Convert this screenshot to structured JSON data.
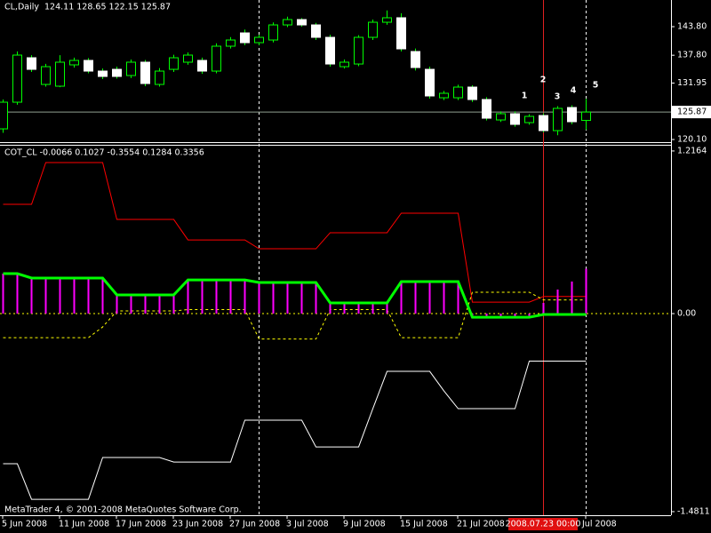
{
  "chart_data": [
    {
      "type": "candlestick",
      "title": "CL,Daily",
      "ohlc_label": "124.11 128.65 122.15 125.87",
      "open": [
        122.34,
        127.94,
        137.27,
        131.67,
        131.3,
        135.78,
        136.71,
        134.47,
        134.84,
        133.54,
        136.34,
        131.67,
        134.84,
        136.34,
        136.71,
        134.47,
        139.7,
        142.49,
        140.44,
        141.0,
        144.17,
        145.29,
        144.17,
        141.56,
        135.4,
        135.96,
        141.56,
        144.73,
        145.67,
        138.58,
        134.84,
        128.87,
        128.87,
        131.11,
        128.5,
        124.21,
        125.52,
        123.65,
        125.14,
        121.97,
        126.82,
        124.11
      ],
      "high": [
        128.5,
        138.6,
        137.8,
        136.0,
        137.8,
        137.3,
        137.2,
        135.0,
        135.4,
        136.9,
        136.8,
        135.1,
        137.9,
        138.4,
        137.3,
        140.3,
        141.6,
        143.2,
        142.1,
        144.7,
        145.9,
        145.6,
        144.6,
        142.1,
        136.9,
        142.0,
        145.3,
        147.2,
        146.6,
        139.2,
        135.4,
        130.3,
        131.6,
        131.5,
        129.0,
        126.0,
        126.0,
        125.4,
        125.6,
        127.1,
        127.3,
        128.65
      ],
      "low": [
        121.5,
        127.4,
        134.3,
        131.2,
        131.1,
        135.2,
        134.0,
        132.8,
        132.9,
        133.0,
        131.3,
        131.2,
        134.3,
        135.8,
        133.9,
        134.0,
        139.2,
        139.9,
        139.9,
        140.5,
        143.7,
        143.8,
        141.0,
        135.4,
        135.0,
        135.5,
        141.0,
        144.2,
        138.6,
        134.6,
        128.7,
        128.4,
        128.4,
        128.0,
        124.1,
        123.8,
        122.8,
        123.2,
        121.6,
        121.0,
        123.3,
        122.15
      ],
      "close": [
        127.94,
        137.83,
        134.84,
        135.4,
        136.34,
        136.71,
        134.47,
        133.35,
        133.35,
        136.34,
        131.86,
        134.47,
        137.27,
        137.83,
        134.47,
        139.7,
        141.0,
        140.44,
        141.56,
        144.17,
        145.29,
        144.17,
        141.56,
        135.96,
        136.34,
        141.56,
        144.73,
        145.67,
        139.14,
        135.22,
        129.25,
        129.81,
        131.11,
        128.5,
        124.58,
        125.52,
        123.28,
        124.96,
        121.97,
        126.64,
        123.84,
        125.87
      ],
      "bull_color": "#000000",
      "bear_color": "#ffffff",
      "wick_color": "#00ff00",
      "ylim": [
        119.55,
        149.4
      ],
      "yticks": [
        {
          "value": 143.8,
          "label": "143.80"
        },
        {
          "value": 137.8,
          "label": "137.80"
        },
        {
          "value": 131.95,
          "label": "131.95"
        },
        {
          "value": 120.1,
          "label": "120.10"
        }
      ],
      "annotations": [
        "1",
        "2",
        "3",
        "4",
        "5"
      ]
    },
    {
      "type": "line",
      "title": "COT_CL -0.0066 0.1027 -0.3554 0.1284 0.3356",
      "categories": [
        "5 Jun 2008",
        null,
        null,
        null,
        "11 Jun 2008",
        null,
        null,
        null,
        "17 Jun 2008",
        null,
        null,
        null,
        "23 Jun 2008",
        null,
        null,
        null,
        "27 Jun 2008",
        null,
        null,
        null,
        "3 Jul 2008",
        null,
        null,
        null,
        "9 Jul 2008",
        null,
        null,
        null,
        "15 Jul 2008",
        null,
        null,
        null,
        "21 Jul 2008",
        null,
        null,
        null,
        null,
        null,
        null,
        null,
        null,
        "Jul 2008"
      ],
      "crosshair_label": "2008.07.23 00:00",
      "footer": "MetaTrader 4, © 2001-2008 MetaQuotes Software Corp.",
      "series": [
        {
          "color": "#ff0000",
          "style": "solid",
          "values": [
            0.817,
            0.817,
            0.817,
            1.13,
            1.13,
            1.13,
            1.13,
            1.13,
            0.704,
            0.704,
            0.704,
            0.704,
            0.704,
            0.551,
            0.551,
            0.551,
            0.551,
            0.551,
            0.485,
            0.485,
            0.485,
            0.485,
            0.485,
            0.605,
            0.605,
            0.605,
            0.605,
            0.605,
            0.751,
            0.751,
            0.751,
            0.751,
            0.751,
            0.086,
            0.086,
            0.086,
            0.086,
            0.086,
            0.1284,
            0.1284,
            0.1284,
            0.1284
          ]
        },
        {
          "color": "#ffffff",
          "style": "solid",
          "values": [
            -1.123,
            -1.123,
            -1.389,
            -1.389,
            -1.389,
            -1.389,
            -1.389,
            -1.076,
            -1.076,
            -1.076,
            -1.076,
            -1.076,
            -1.11,
            -1.11,
            -1.11,
            -1.11,
            -1.11,
            -0.797,
            -0.797,
            -0.797,
            -0.797,
            -0.797,
            -0.997,
            -0.997,
            -0.997,
            -0.997,
            -0.711,
            -0.432,
            -0.432,
            -0.432,
            -0.432,
            -0.578,
            -0.711,
            -0.711,
            -0.711,
            -0.711,
            -0.711,
            -0.3554,
            -0.3554,
            -0.3554,
            -0.3554,
            -0.3554
          ]
        },
        {
          "color": "#ffff00",
          "style": "dashed",
          "values": [
            -0.18,
            -0.18,
            -0.18,
            -0.18,
            -0.18,
            -0.18,
            -0.18,
            -0.1,
            0.02,
            0.02,
            0.02,
            0.02,
            0.02,
            0.03,
            0.03,
            0.03,
            0.03,
            0.03,
            -0.19,
            -0.19,
            -0.19,
            -0.19,
            -0.19,
            0.03,
            0.03,
            0.03,
            0.03,
            0.03,
            -0.18,
            -0.18,
            -0.18,
            -0.18,
            -0.18,
            0.16,
            0.16,
            0.16,
            0.16,
            0.16,
            0.1027,
            0.1027,
            0.1027,
            0.1027
          ]
        },
        {
          "color": "#ff00ff",
          "style": "histogram",
          "values": [
            0.299,
            0.299,
            0.266,
            0.266,
            0.266,
            0.266,
            0.266,
            0.266,
            0.14,
            0.14,
            0.14,
            0.14,
            0.14,
            0.252,
            0.252,
            0.252,
            0.252,
            0.252,
            0.233,
            0.233,
            0.233,
            0.233,
            0.233,
            0.08,
            0.08,
            0.08,
            0.08,
            0.08,
            0.239,
            0.239,
            0.239,
            0.239,
            0.239,
            -0.027,
            -0.027,
            -0.027,
            -0.027,
            -0.027,
            0.08,
            0.18,
            0.24,
            0.3356
          ]
        },
        {
          "color": "#00ff00",
          "style": "thick",
          "values": [
            0.299,
            0.299,
            0.266,
            0.266,
            0.266,
            0.266,
            0.266,
            0.266,
            0.14,
            0.14,
            0.14,
            0.14,
            0.14,
            0.252,
            0.252,
            0.252,
            0.252,
            0.252,
            0.233,
            0.233,
            0.233,
            0.233,
            0.233,
            0.08,
            0.08,
            0.08,
            0.08,
            0.08,
            0.239,
            0.239,
            0.239,
            0.239,
            0.239,
            -0.027,
            -0.027,
            -0.027,
            -0.027,
            -0.027,
            -0.0066,
            -0.0066,
            -0.0066,
            -0.0066
          ]
        }
      ],
      "ylim": [
        -1.508,
        1.2625
      ],
      "yticks": [
        1.2164,
        {
          "value": 0,
          "label": "0.00"
        },
        -1.4811
      ]
    }
  ]
}
